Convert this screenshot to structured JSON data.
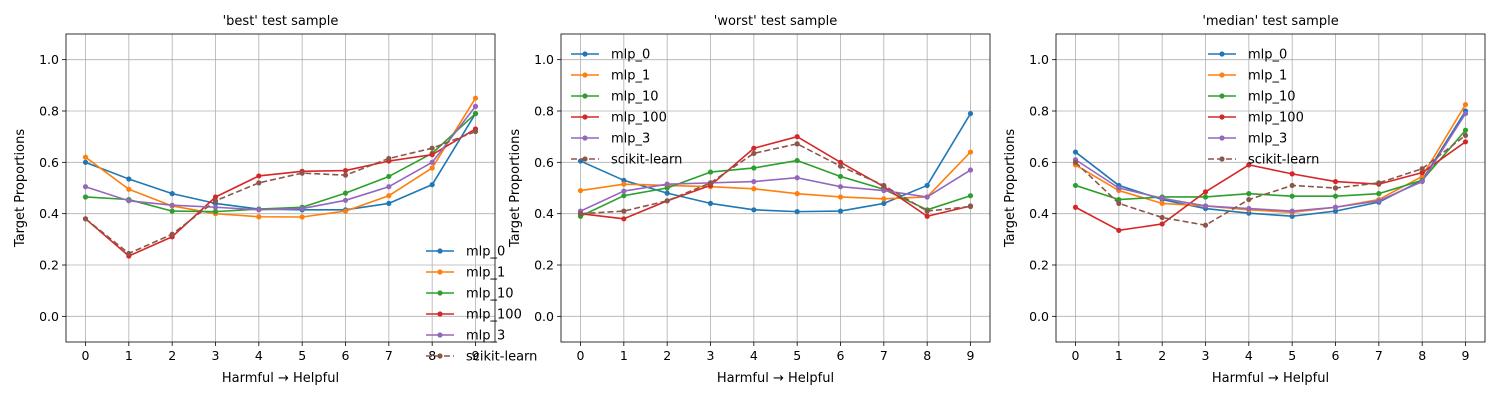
{
  "chart_data": [
    {
      "type": "line",
      "title": "'best' test sample",
      "xlabel": "Harmful → Helpful",
      "ylabel": "Target Proportions",
      "x": [
        0,
        1,
        2,
        3,
        4,
        5,
        6,
        7,
        8,
        9
      ],
      "xlim": [
        -0.45,
        9.45
      ],
      "ylim": [
        -0.1,
        1.1
      ],
      "yticks": [
        0.0,
        0.2,
        0.4,
        0.6,
        0.8,
        1.0
      ],
      "grid": true,
      "legend": "lower-right",
      "series": [
        {
          "name": "mlp_0",
          "color": "#1f77b4",
          "style": "solid",
          "values": [
            0.6,
            0.535,
            0.478,
            0.44,
            0.418,
            0.415,
            0.415,
            0.44,
            0.513,
            0.79
          ]
        },
        {
          "name": "mlp_1",
          "color": "#ff7f0e",
          "style": "solid",
          "values": [
            0.62,
            0.495,
            0.43,
            0.4,
            0.388,
            0.387,
            0.41,
            0.47,
            0.578,
            0.85
          ]
        },
        {
          "name": "mlp_10",
          "color": "#2ca02c",
          "style": "solid",
          "values": [
            0.465,
            0.455,
            0.41,
            0.408,
            0.418,
            0.425,
            0.48,
            0.545,
            0.635,
            0.79
          ]
        },
        {
          "name": "mlp_100",
          "color": "#d62728",
          "style": "solid",
          "values": [
            0.38,
            0.235,
            0.31,
            0.465,
            0.547,
            0.565,
            0.568,
            0.605,
            0.63,
            0.73
          ]
        },
        {
          "name": "mlp_3",
          "color": "#9467bd",
          "style": "solid",
          "values": [
            0.505,
            0.45,
            0.433,
            0.425,
            0.415,
            0.42,
            0.452,
            0.505,
            0.6,
            0.818
          ]
        },
        {
          "name": "scikit-learn",
          "color": "#8c564b",
          "style": "dashed",
          "values": [
            0.38,
            0.245,
            0.32,
            0.45,
            0.52,
            0.558,
            0.55,
            0.615,
            0.655,
            0.72
          ]
        }
      ]
    },
    {
      "type": "line",
      "title": "'worst' test sample",
      "xlabel": "Harmful → Helpful",
      "ylabel": "Target Proportions",
      "x": [
        0,
        1,
        2,
        3,
        4,
        5,
        6,
        7,
        8,
        9
      ],
      "xlim": [
        -0.45,
        9.45
      ],
      "ylim": [
        -0.1,
        1.1
      ],
      "yticks": [
        0.0,
        0.2,
        0.4,
        0.6,
        0.8,
        1.0
      ],
      "grid": true,
      "legend": "upper-left",
      "series": [
        {
          "name": "mlp_0",
          "color": "#1f77b4",
          "style": "solid",
          "values": [
            0.605,
            0.53,
            0.48,
            0.44,
            0.415,
            0.408,
            0.41,
            0.44,
            0.51,
            0.79
          ]
        },
        {
          "name": "mlp_1",
          "color": "#ff7f0e",
          "style": "solid",
          "values": [
            0.49,
            0.515,
            0.51,
            0.505,
            0.497,
            0.478,
            0.465,
            0.458,
            0.465,
            0.64
          ]
        },
        {
          "name": "mlp_10",
          "color": "#2ca02c",
          "style": "solid",
          "values": [
            0.39,
            0.47,
            0.5,
            0.562,
            0.578,
            0.607,
            0.545,
            0.495,
            0.415,
            0.47
          ]
        },
        {
          "name": "mlp_100",
          "color": "#d62728",
          "style": "solid",
          "values": [
            0.4,
            0.38,
            0.45,
            0.51,
            0.655,
            0.7,
            0.6,
            0.505,
            0.39,
            0.43
          ]
        },
        {
          "name": "mlp_3",
          "color": "#9467bd",
          "style": "solid",
          "values": [
            0.41,
            0.488,
            0.515,
            0.52,
            0.525,
            0.54,
            0.505,
            0.49,
            0.465,
            0.57
          ]
        },
        {
          "name": "scikit-learn",
          "color": "#8c564b",
          "style": "dashed",
          "values": [
            0.4,
            0.41,
            0.45,
            0.52,
            0.635,
            0.672,
            0.585,
            0.51,
            0.41,
            0.428
          ]
        }
      ]
    },
    {
      "type": "line",
      "title": "'median' test sample",
      "xlabel": "Harmful → Helpful",
      "ylabel": "Target Proportions",
      "x": [
        0,
        1,
        2,
        3,
        4,
        5,
        6,
        7,
        8,
        9
      ],
      "xlim": [
        -0.45,
        9.45
      ],
      "ylim": [
        -0.1,
        1.1
      ],
      "yticks": [
        0.0,
        0.2,
        0.4,
        0.6,
        0.8,
        1.0
      ],
      "grid": true,
      "legend": "upper-center",
      "series": [
        {
          "name": "mlp_0",
          "color": "#1f77b4",
          "style": "solid",
          "values": [
            0.64,
            0.51,
            0.455,
            0.42,
            0.402,
            0.39,
            0.41,
            0.445,
            0.53,
            0.8
          ]
        },
        {
          "name": "mlp_1",
          "color": "#ff7f0e",
          "style": "solid",
          "values": [
            0.59,
            0.49,
            0.44,
            0.43,
            0.415,
            0.405,
            0.425,
            0.455,
            0.545,
            0.825
          ]
        },
        {
          "name": "mlp_10",
          "color": "#2ca02c",
          "style": "solid",
          "values": [
            0.51,
            0.455,
            0.465,
            0.465,
            0.478,
            0.468,
            0.468,
            0.478,
            0.53,
            0.725
          ]
        },
        {
          "name": "mlp_100",
          "color": "#d62728",
          "style": "solid",
          "values": [
            0.425,
            0.335,
            0.36,
            0.485,
            0.59,
            0.555,
            0.525,
            0.515,
            0.56,
            0.68
          ]
        },
        {
          "name": "mlp_3",
          "color": "#9467bd",
          "style": "solid",
          "values": [
            0.61,
            0.5,
            0.46,
            0.43,
            0.42,
            0.41,
            0.425,
            0.45,
            0.525,
            0.79
          ]
        },
        {
          "name": "scikit-learn",
          "color": "#8c564b",
          "style": "dashed",
          "values": [
            0.6,
            0.44,
            0.385,
            0.355,
            0.455,
            0.51,
            0.5,
            0.52,
            0.575,
            0.705
          ]
        }
      ]
    }
  ]
}
